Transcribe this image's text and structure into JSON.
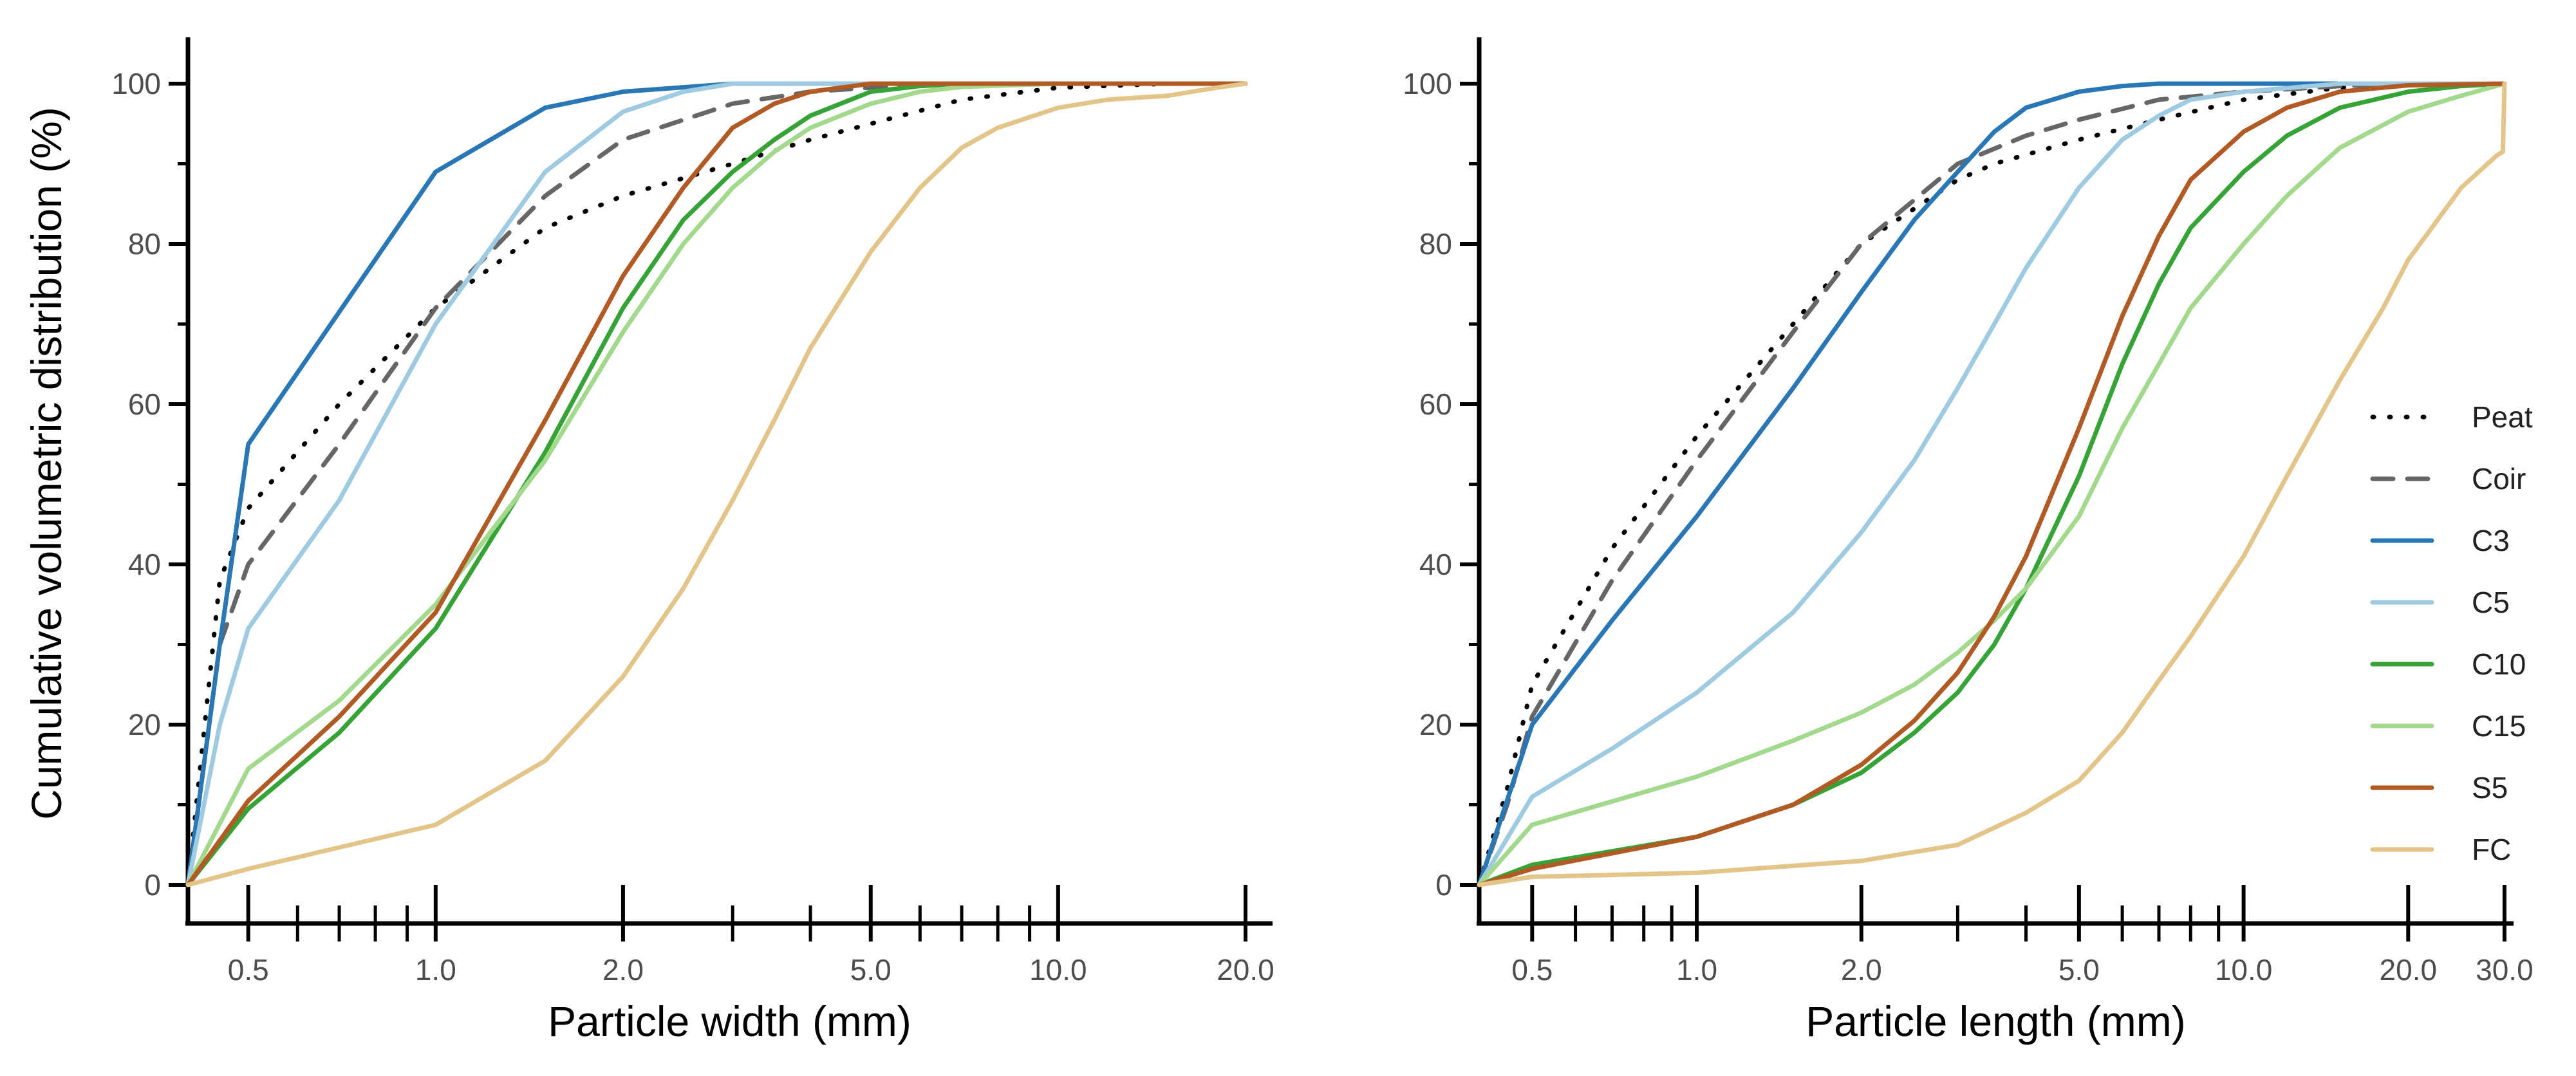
{
  "figure": {
    "y_axis_title": "Cumulative volumetric distribution (%)",
    "legend": [
      {
        "label": "Peat",
        "style": "dotted",
        "color": "#000000"
      },
      {
        "label": "Coir",
        "style": "dashed",
        "color": "#666666"
      },
      {
        "label": "C3",
        "style": "solid",
        "color": "#2a77b5"
      },
      {
        "label": "C5",
        "style": "solid",
        "color": "#9ecbe2"
      },
      {
        "label": "C10",
        "style": "solid",
        "color": "#36a336"
      },
      {
        "label": "C15",
        "style": "solid",
        "color": "#a3d98d"
      },
      {
        "label": "S5",
        "style": "solid",
        "color": "#b15a24"
      },
      {
        "label": "FC",
        "style": "solid",
        "color": "#e3c489"
      }
    ]
  },
  "chart_data": [
    {
      "type": "line",
      "x_scale": "log",
      "xlabel": "Particle width (mm)",
      "ylabel": "Cumulative volumetric distribution (%)",
      "xlim": [
        0.4,
        22
      ],
      "ylim": [
        0,
        100
      ],
      "x_tick_labels": [
        "0.5",
        "1.0",
        "2.0",
        "5.0",
        "10.0",
        "20.0"
      ],
      "x_major_ticks": [
        0.5,
        1,
        2,
        5,
        10,
        20
      ],
      "x_minor_ticks": [
        0.6,
        0.7,
        0.8,
        0.9,
        3,
        4,
        6,
        7,
        8,
        9
      ],
      "y_ticks": [
        0,
        20,
        40,
        60,
        80,
        100
      ],
      "y_minor_ticks": [
        10,
        30,
        50,
        70,
        90
      ],
      "series": [
        {
          "name": "Peat",
          "x": [
            0.4,
            0.45,
            0.5,
            0.7,
            1.0,
            1.5,
            2.0,
            3.0,
            4.0,
            5.0,
            7.0,
            10.0,
            15.0,
            20.0
          ],
          "y": [
            0,
            38,
            47,
            60,
            72,
            82,
            86,
            90,
            93,
            95,
            98,
            99.5,
            100,
            100
          ]
        },
        {
          "name": "Coir",
          "x": [
            0.4,
            0.45,
            0.5,
            0.7,
            1.0,
            1.5,
            2.0,
            3.0,
            4.0,
            5.0,
            7.0,
            10.0,
            20.0
          ],
          "y": [
            0,
            30,
            40,
            55,
            72,
            86,
            93,
            97.5,
            99,
            99.5,
            100,
            100,
            100
          ]
        },
        {
          "name": "C3",
          "x": [
            0.4,
            0.45,
            0.5,
            1.0,
            1.5,
            2.0,
            3.0,
            5.0,
            10.0,
            20.0
          ],
          "y": [
            0,
            30,
            55,
            89,
            97,
            99,
            100,
            100,
            100,
            100
          ]
        },
        {
          "name": "C5",
          "x": [
            0.4,
            0.45,
            0.5,
            0.7,
            1.0,
            1.5,
            2.0,
            2.5,
            3.0,
            5.0,
            20.0
          ],
          "y": [
            0,
            20,
            32,
            48,
            70,
            89,
            96.5,
            99,
            100,
            100,
            100
          ]
        },
        {
          "name": "C10",
          "x": [
            0.4,
            0.5,
            0.7,
            1.0,
            1.5,
            2.0,
            2.5,
            3.0,
            3.5,
            4.0,
            5.0,
            6.0,
            7.0,
            10.0,
            20.0
          ],
          "y": [
            0,
            9.5,
            19,
            32,
            54,
            72,
            83,
            89,
            93,
            96,
            99,
            99.7,
            100,
            100,
            100
          ]
        },
        {
          "name": "C15",
          "x": [
            0.4,
            0.5,
            0.7,
            1.0,
            1.5,
            2.0,
            2.5,
            3.0,
            3.5,
            4.0,
            5.0,
            6.0,
            7.0,
            10.0,
            20.0
          ],
          "y": [
            0,
            14.5,
            23,
            35,
            53,
            69,
            80,
            87,
            91.5,
            94.5,
            97.5,
            99,
            99.6,
            100,
            100
          ]
        },
        {
          "name": "S5",
          "x": [
            0.4,
            0.5,
            0.7,
            1.0,
            1.5,
            2.0,
            2.5,
            3.0,
            3.5,
            4.0,
            5.0,
            6.0,
            10.0,
            20.0
          ],
          "y": [
            0,
            10.5,
            21,
            34,
            58,
            76,
            87,
            94.5,
            97.5,
            99,
            100,
            100,
            100,
            100
          ]
        },
        {
          "name": "FC",
          "x": [
            0.4,
            0.5,
            1.0,
            1.5,
            2.0,
            2.5,
            3.0,
            3.5,
            4.0,
            5.0,
            6.0,
            7.0,
            8.0,
            10.0,
            12.0,
            15.0,
            18.0,
            20.0
          ],
          "y": [
            0,
            2,
            7.5,
            15.5,
            26,
            37,
            48,
            58,
            67,
            79,
            87,
            92,
            94.5,
            97,
            98,
            98.5,
            99.5,
            100
          ]
        }
      ]
    },
    {
      "type": "line",
      "x_scale": "log",
      "xlabel": "Particle length (mm)",
      "ylabel": "Cumulative volumetric distribution (%)",
      "xlim": [
        0.4,
        31
      ],
      "ylim": [
        0,
        100
      ],
      "x_tick_labels": [
        "0.5",
        "1.0",
        "2.0",
        "5.0",
        "10.0",
        "20.0",
        "30.0"
      ],
      "x_major_ticks": [
        0.5,
        1,
        2,
        5,
        10,
        20,
        30
      ],
      "x_minor_ticks": [
        0.6,
        0.7,
        0.8,
        0.9,
        3,
        4,
        6,
        7,
        8,
        9
      ],
      "y_ticks": [
        0,
        20,
        40,
        60,
        80,
        100
      ],
      "y_minor_ticks": [
        10,
        30,
        50,
        70,
        90
      ],
      "series": [
        {
          "name": "Peat",
          "x": [
            0.4,
            0.45,
            0.5,
            0.7,
            1.0,
            1.5,
            2.0,
            3.0,
            3.5,
            5.0,
            7.0,
            10.0,
            15.0,
            20.0,
            30.0
          ],
          "y": [
            0,
            12,
            25,
            42,
            56,
            70,
            80,
            88,
            90,
            93,
            95.5,
            98,
            99.5,
            100,
            100
          ]
        },
        {
          "name": "Coir",
          "x": [
            0.4,
            0.45,
            0.5,
            0.7,
            1.0,
            1.5,
            2.0,
            3.0,
            4.0,
            5.0,
            7.0,
            10.0,
            15.0,
            20.0,
            30.0
          ],
          "y": [
            0,
            10,
            21,
            38,
            53,
            69,
            80,
            90,
            93.5,
            95.5,
            98,
            99,
            99.7,
            100,
            100
          ]
        },
        {
          "name": "C3",
          "x": [
            0.4,
            0.5,
            0.7,
            1.0,
            1.5,
            2.0,
            2.5,
            3.0,
            3.5,
            4.0,
            5.0,
            6.0,
            7.0,
            10.0,
            15.0,
            30.0
          ],
          "y": [
            0,
            20,
            33,
            46,
            62,
            74,
            83,
            89,
            94,
            97,
            99,
            99.7,
            100,
            100,
            100,
            100
          ]
        },
        {
          "name": "C5",
          "x": [
            0.4,
            0.5,
            0.7,
            1.0,
            1.5,
            2.0,
            2.5,
            3.0,
            3.5,
            4.0,
            5.0,
            6.0,
            7.0,
            8.0,
            10.0,
            15.0,
            20.0,
            30.0
          ],
          "y": [
            0,
            11,
            17,
            24,
            34,
            44,
            53,
            62,
            70,
            77,
            87,
            93,
            96,
            98,
            99,
            100,
            100,
            100
          ]
        },
        {
          "name": "C10",
          "x": [
            0.4,
            0.5,
            1.0,
            1.5,
            2.0,
            2.5,
            3.0,
            3.5,
            4.0,
            5.0,
            6.0,
            7.0,
            8.0,
            10.0,
            12.0,
            15.0,
            20.0,
            25.0,
            30.0
          ],
          "y": [
            0,
            2.5,
            6,
            10,
            14,
            19,
            24,
            30,
            37,
            51,
            65,
            75,
            82,
            89,
            93.5,
            97,
            99,
            99.7,
            100
          ]
        },
        {
          "name": "C15",
          "x": [
            0.4,
            0.5,
            1.0,
            1.5,
            2.0,
            2.5,
            3.0,
            3.5,
            4.0,
            5.0,
            6.0,
            7.0,
            8.0,
            10.0,
            12.0,
            15.0,
            20.0,
            25.0,
            30.0
          ],
          "y": [
            0,
            7.5,
            13.5,
            18,
            21.5,
            25,
            29,
            33,
            37,
            46,
            57,
            65,
            72,
            80,
            86,
            92,
            96.5,
            98.5,
            100
          ]
        },
        {
          "name": "S5",
          "x": [
            0.4,
            0.5,
            1.0,
            1.5,
            2.0,
            2.5,
            3.0,
            3.5,
            4.0,
            5.0,
            6.0,
            7.0,
            8.0,
            10.0,
            12.0,
            15.0,
            20.0,
            30.0
          ],
          "y": [
            0,
            2,
            6,
            10,
            15,
            20.5,
            26.5,
            33.5,
            41,
            57,
            71,
            81,
            88,
            94,
            97,
            99,
            99.8,
            100
          ]
        },
        {
          "name": "FC",
          "x": [
            0.4,
            0.5,
            1.0,
            2.0,
            3.0,
            4.0,
            5.0,
            6.0,
            7.0,
            8.0,
            10.0,
            12.0,
            15.0,
            18.0,
            20.0,
            25.0,
            29.0,
            29.8,
            30.0
          ],
          "y": [
            0,
            1,
            1.5,
            3,
            5,
            9,
            13,
            19,
            25.5,
            31,
            41,
            51,
            63,
            72,
            78,
            87,
            91,
            91.5,
            100
          ]
        }
      ]
    }
  ]
}
